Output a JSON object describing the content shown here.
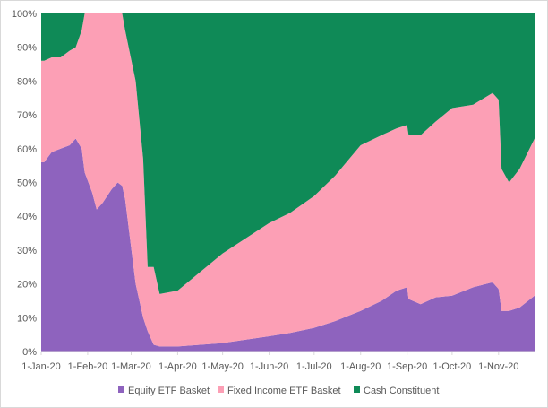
{
  "chart_data": {
    "type": "area",
    "stacked": true,
    "percent": true,
    "title": "",
    "xlabel": "",
    "ylabel": "",
    "ylim": [
      0,
      100
    ],
    "y_ticks": [
      "0%",
      "10%",
      "20%",
      "30%",
      "40%",
      "50%",
      "60%",
      "70%",
      "80%",
      "90%",
      "100%"
    ],
    "x_ticks": [
      "1-Jan-20",
      "1-Feb-20",
      "1-Mar-20",
      "1-Apr-20",
      "1-May-20",
      "1-Jun-20",
      "1-Jul-20",
      "1-Aug-20",
      "1-Sep-20",
      "1-Oct-20",
      "1-Nov-20"
    ],
    "x_range": [
      "2020-01-01",
      "2020-11-25"
    ],
    "grid": false,
    "legend_position": "bottom",
    "series": [
      {
        "name": "Equity ETF Basket",
        "color": "#8e63be",
        "points": [
          [
            "2020-01-01",
            56
          ],
          [
            "2020-01-03",
            56
          ],
          [
            "2020-01-08",
            59
          ],
          [
            "2020-01-14",
            60
          ],
          [
            "2020-01-20",
            61
          ],
          [
            "2020-01-24",
            63
          ],
          [
            "2020-01-28",
            60
          ],
          [
            "2020-01-30",
            53
          ],
          [
            "2020-02-04",
            47
          ],
          [
            "2020-02-07",
            42
          ],
          [
            "2020-02-11",
            44
          ],
          [
            "2020-02-17",
            48
          ],
          [
            "2020-02-21",
            50
          ],
          [
            "2020-02-24",
            49
          ],
          [
            "2020-02-26",
            45
          ],
          [
            "2020-03-04",
            20
          ],
          [
            "2020-03-09",
            10
          ],
          [
            "2020-03-12",
            6
          ],
          [
            "2020-03-16",
            2
          ],
          [
            "2020-03-20",
            1.5
          ],
          [
            "2020-04-01",
            1.5
          ],
          [
            "2020-05-01",
            2.5
          ],
          [
            "2020-06-01",
            4.5
          ],
          [
            "2020-06-15",
            5.5
          ],
          [
            "2020-07-01",
            7
          ],
          [
            "2020-07-15",
            9
          ],
          [
            "2020-08-01",
            12
          ],
          [
            "2020-08-15",
            15
          ],
          [
            "2020-08-25",
            18
          ],
          [
            "2020-09-01",
            19
          ],
          [
            "2020-09-02",
            15.5
          ],
          [
            "2020-09-10",
            14
          ],
          [
            "2020-09-20",
            16
          ],
          [
            "2020-10-01",
            16.5
          ],
          [
            "2020-10-15",
            19
          ],
          [
            "2020-10-28",
            20.5
          ],
          [
            "2020-11-01",
            18.5
          ],
          [
            "2020-11-03",
            12
          ],
          [
            "2020-11-08",
            12
          ],
          [
            "2020-11-15",
            13
          ],
          [
            "2020-11-25",
            16.5
          ]
        ]
      },
      {
        "name": "Fixed Income ETF Basket",
        "color": "#fc9fb5",
        "points": [
          [
            "2020-01-01",
            30
          ],
          [
            "2020-01-03",
            30
          ],
          [
            "2020-01-08",
            28
          ],
          [
            "2020-01-14",
            27
          ],
          [
            "2020-01-20",
            28
          ],
          [
            "2020-01-24",
            27
          ],
          [
            "2020-01-28",
            35
          ],
          [
            "2020-01-30",
            47
          ],
          [
            "2020-02-04",
            53
          ],
          [
            "2020-02-07",
            58
          ],
          [
            "2020-02-11",
            56
          ],
          [
            "2020-02-17",
            52
          ],
          [
            "2020-02-21",
            50
          ],
          [
            "2020-02-24",
            51
          ],
          [
            "2020-02-26",
            50
          ],
          [
            "2020-03-04",
            60
          ],
          [
            "2020-03-09",
            47
          ],
          [
            "2020-03-12",
            19
          ],
          [
            "2020-03-16",
            23
          ],
          [
            "2020-03-20",
            15.5
          ],
          [
            "2020-04-01",
            16.5
          ],
          [
            "2020-05-01",
            26.5
          ],
          [
            "2020-06-01",
            33.5
          ],
          [
            "2020-06-15",
            35.5
          ],
          [
            "2020-07-01",
            39
          ],
          [
            "2020-07-15",
            43
          ],
          [
            "2020-08-01",
            49
          ],
          [
            "2020-08-15",
            49
          ],
          [
            "2020-08-25",
            48
          ],
          [
            "2020-09-01",
            48
          ],
          [
            "2020-09-02",
            48.5
          ],
          [
            "2020-09-10",
            50
          ],
          [
            "2020-09-20",
            52
          ],
          [
            "2020-10-01",
            55.5
          ],
          [
            "2020-10-15",
            54
          ],
          [
            "2020-10-28",
            56
          ],
          [
            "2020-11-01",
            56
          ],
          [
            "2020-11-03",
            42
          ],
          [
            "2020-11-08",
            38
          ],
          [
            "2020-11-15",
            41
          ],
          [
            "2020-11-25",
            46.5
          ]
        ]
      },
      {
        "name": "Cash Constituent",
        "color": "#0f8a57",
        "points": [
          [
            "2020-01-01",
            14
          ],
          [
            "2020-01-03",
            14
          ],
          [
            "2020-01-08",
            13
          ],
          [
            "2020-01-14",
            13
          ],
          [
            "2020-01-20",
            11
          ],
          [
            "2020-01-24",
            10
          ],
          [
            "2020-01-28",
            5
          ],
          [
            "2020-01-30",
            0
          ],
          [
            "2020-02-04",
            0
          ],
          [
            "2020-02-07",
            0
          ],
          [
            "2020-02-11",
            0
          ],
          [
            "2020-02-17",
            0
          ],
          [
            "2020-02-21",
            0
          ],
          [
            "2020-02-24",
            0
          ],
          [
            "2020-02-26",
            5
          ],
          [
            "2020-03-04",
            20
          ],
          [
            "2020-03-09",
            43
          ],
          [
            "2020-03-12",
            75
          ],
          [
            "2020-03-16",
            75
          ],
          [
            "2020-03-20",
            83
          ],
          [
            "2020-04-01",
            82
          ],
          [
            "2020-05-01",
            71
          ],
          [
            "2020-06-01",
            62
          ],
          [
            "2020-06-15",
            59
          ],
          [
            "2020-07-01",
            54
          ],
          [
            "2020-07-15",
            48
          ],
          [
            "2020-08-01",
            39
          ],
          [
            "2020-08-15",
            36
          ],
          [
            "2020-08-25",
            34
          ],
          [
            "2020-09-01",
            33
          ],
          [
            "2020-09-02",
            36
          ],
          [
            "2020-09-10",
            36
          ],
          [
            "2020-09-20",
            32
          ],
          [
            "2020-10-01",
            28
          ],
          [
            "2020-10-15",
            27
          ],
          [
            "2020-10-28",
            23.5
          ],
          [
            "2020-11-01",
            25.5
          ],
          [
            "2020-11-03",
            46
          ],
          [
            "2020-11-08",
            50
          ],
          [
            "2020-11-15",
            46
          ],
          [
            "2020-11-25",
            37
          ]
        ]
      }
    ]
  }
}
